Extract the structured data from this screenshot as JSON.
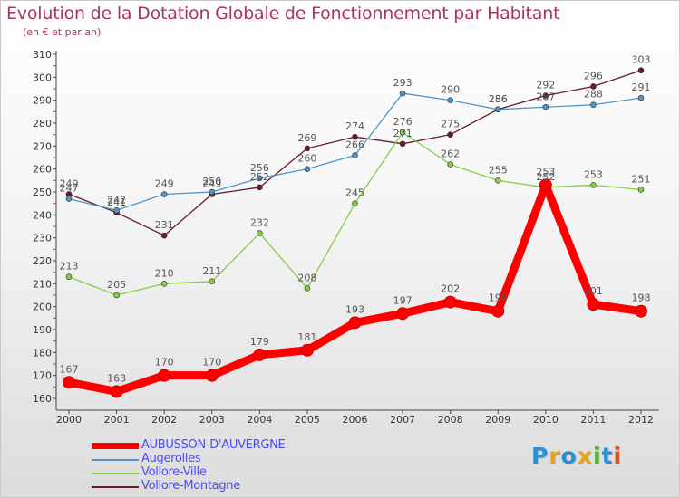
{
  "title": "Evolution de la Dotation Globale de Fonctionnement par Habitant",
  "subtitle": "(en € et par an)",
  "logo_text": "Proxiti",
  "chart_data": {
    "type": "line",
    "title": "Evolution de la Dotation Globale de Fonctionnement par Habitant",
    "subtitle": "(en € et par an)",
    "xlabel": "",
    "ylabel": "",
    "categories": [
      "2000",
      "2001",
      "2002",
      "2003",
      "2004",
      "2005",
      "2006",
      "2007",
      "2008",
      "2009",
      "2010",
      "2011",
      "2012"
    ],
    "ylim": [
      160,
      310
    ],
    "yticks": [
      160,
      170,
      180,
      190,
      200,
      210,
      220,
      230,
      240,
      250,
      260,
      270,
      280,
      290,
      300,
      310
    ],
    "grid": false,
    "legend_position": "bottom-left",
    "series": [
      {
        "name": "AUBUSSON-D'AUVERGNE",
        "color": "#ff0000",
        "values": [
          167,
          163,
          170,
          170,
          179,
          181,
          193,
          197,
          202,
          198,
          253,
          201,
          198
        ]
      },
      {
        "name": "Augerolles",
        "color": "#4f96c8",
        "values": [
          247,
          242,
          249,
          250,
          256,
          260,
          266,
          293,
          290,
          286,
          287,
          288,
          291
        ]
      },
      {
        "name": "Vollore-Ville",
        "color": "#88cc44",
        "values": [
          213,
          205,
          210,
          211,
          232,
          208,
          245,
          276,
          262,
          255,
          252,
          253,
          251
        ]
      },
      {
        "name": "Vollore-Montagne",
        "color": "#6a1a2a",
        "values": [
          249,
          241,
          231,
          249,
          252,
          269,
          274,
          271,
          275,
          286,
          292,
          296,
          303
        ]
      }
    ]
  }
}
